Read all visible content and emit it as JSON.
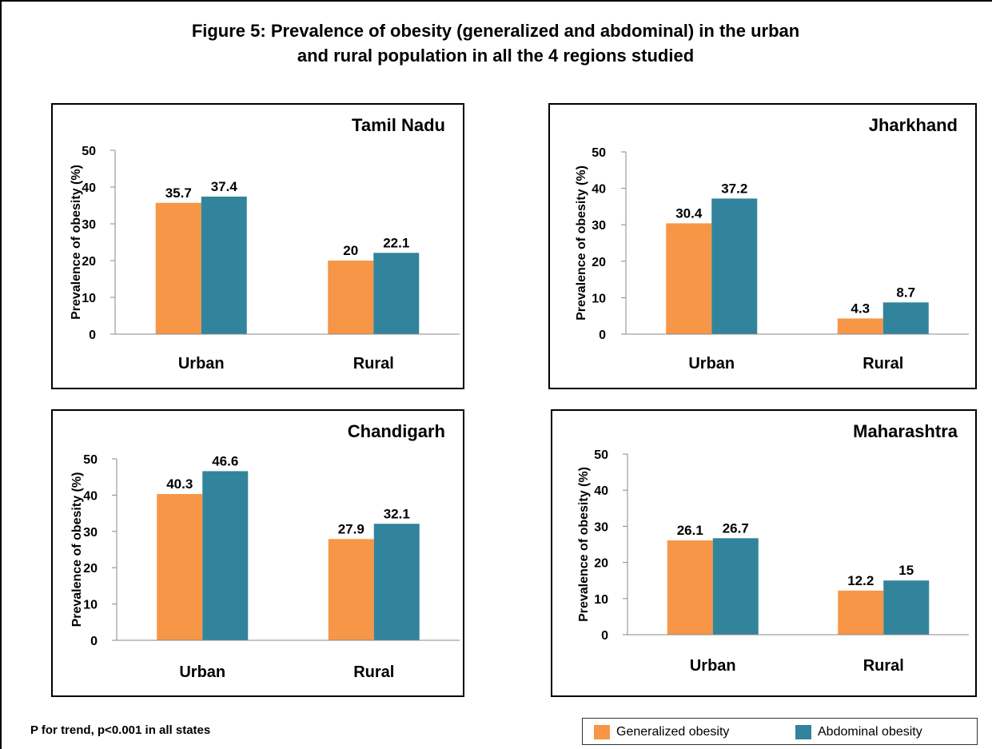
{
  "title_line1": "Figure 5: Prevalence of obesity (generalized and abdominal) in the urban",
  "title_line2": "and rural population in all the 4 regions studied",
  "footnote": "P for trend, p<0.001 in all states",
  "colors": {
    "generalized": "#F79646",
    "abdominal": "#31849B"
  },
  "legend": [
    {
      "label": "Generalized obesity",
      "color": "#F79646"
    },
    {
      "label": "Abdominal obesity",
      "color": "#31849B"
    }
  ],
  "chart_data": [
    {
      "type": "bar",
      "title": "Tamil Nadu",
      "categories": [
        "Urban",
        "Rural"
      ],
      "ylabel": "Prevalence of obesity (%)",
      "ylim": [
        0,
        50
      ],
      "yticks": [
        0,
        10,
        20,
        30,
        40,
        50
      ],
      "series": [
        {
          "name": "Generalized obesity",
          "values": [
            35.7,
            20
          ],
          "labels": [
            "35.7",
            "20"
          ]
        },
        {
          "name": "Abdominal obesity",
          "values": [
            37.4,
            22.1
          ],
          "labels": [
            "37.4",
            "22.1"
          ]
        }
      ]
    },
    {
      "type": "bar",
      "title": "Jharkhand",
      "categories": [
        "Urban",
        "Rural"
      ],
      "ylabel": "Prevalence of obesity (%)",
      "ylim": [
        0,
        50
      ],
      "yticks": [
        0,
        10,
        20,
        30,
        40,
        50
      ],
      "series": [
        {
          "name": "Generalized obesity",
          "values": [
            30.4,
            4.3
          ],
          "labels": [
            "30.4",
            "4.3"
          ]
        },
        {
          "name": "Abdominal obesity",
          "values": [
            37.2,
            8.7
          ],
          "labels": [
            "37.2",
            "8.7"
          ]
        }
      ]
    },
    {
      "type": "bar",
      "title": "Chandigarh",
      "categories": [
        "Urban",
        "Rural"
      ],
      "ylabel": "Prevalence of obesity (%)",
      "ylim": [
        0,
        50
      ],
      "yticks": [
        0,
        10,
        20,
        30,
        40,
        50
      ],
      "series": [
        {
          "name": "Generalized obesity",
          "values": [
            40.3,
            27.9
          ],
          "labels": [
            "40.3",
            "27.9"
          ]
        },
        {
          "name": "Abdominal obesity",
          "values": [
            46.6,
            32.1
          ],
          "labels": [
            "46.6",
            "32.1"
          ]
        }
      ]
    },
    {
      "type": "bar",
      "title": "Maharashtra",
      "categories": [
        "Urban",
        "Rural"
      ],
      "ylabel": "Prevalence of obesity (%)",
      "ylim": [
        0,
        50
      ],
      "yticks": [
        0,
        10,
        20,
        30,
        40,
        50
      ],
      "series": [
        {
          "name": "Generalized obesity",
          "values": [
            26.1,
            12.2
          ],
          "labels": [
            "26.1",
            "12.2"
          ]
        },
        {
          "name": "Abdominal obesity",
          "values": [
            26.7,
            15
          ],
          "labels": [
            "26.7",
            "15"
          ]
        }
      ]
    }
  ]
}
